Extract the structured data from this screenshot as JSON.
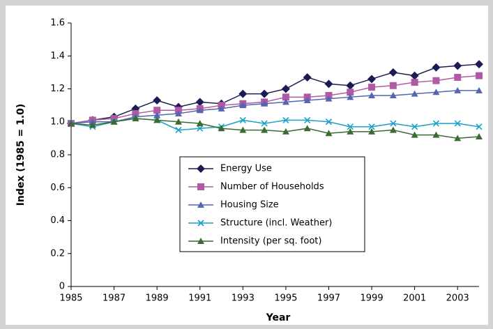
{
  "chart_data": {
    "type": "line",
    "x_label": "Year",
    "y_label": "Index (1985 = 1.0)",
    "x": [
      1985,
      1986,
      1987,
      1988,
      1989,
      1990,
      1991,
      1992,
      1993,
      1994,
      1995,
      1996,
      1997,
      1998,
      1999,
      2000,
      2001,
      2002,
      2003,
      2004
    ],
    "xlim": [
      1985,
      2004
    ],
    "xticks": [
      1985,
      1987,
      1989,
      1991,
      1993,
      1995,
      1997,
      1999,
      2001,
      2003
    ],
    "ylim": [
      0,
      1.6
    ],
    "yticks": [
      0,
      0.2,
      0.4,
      0.6,
      0.8,
      {
        "value": 1,
        "label": "1.0"
      },
      {
        "value": 1.2,
        "label": "1.2"
      },
      {
        "value": 1.4,
        "label": "1.4"
      },
      {
        "value": 1.6,
        "label": "1.6"
      }
    ],
    "grid": false,
    "legend": "center",
    "series": [
      {
        "name": "Energy Use",
        "color": "#1c1c54",
        "marker": "diamond",
        "values": [
          0.99,
          1.01,
          1.03,
          1.08,
          1.13,
          1.09,
          1.12,
          1.11,
          1.17,
          1.17,
          1.2,
          1.27,
          1.23,
          1.22,
          1.26,
          1.3,
          1.28,
          1.33,
          1.34,
          1.35
        ]
      },
      {
        "name": "Number of Households",
        "color": "#b05aa4",
        "marker": "square",
        "values": [
          0.99,
          1.01,
          1.02,
          1.05,
          1.07,
          1.07,
          1.08,
          1.1,
          1.11,
          1.12,
          1.15,
          1.15,
          1.16,
          1.18,
          1.21,
          1.22,
          1.24,
          1.25,
          1.27,
          1.28
        ]
      },
      {
        "name": "Housing Size",
        "color": "#5466b0",
        "marker": "triangle",
        "values": [
          0.99,
          1.0,
          1.0,
          1.03,
          1.04,
          1.05,
          1.07,
          1.08,
          1.1,
          1.11,
          1.12,
          1.13,
          1.14,
          1.15,
          1.16,
          1.16,
          1.17,
          1.18,
          1.19,
          1.19
        ]
      },
      {
        "name": "Structure (incl. Weather)",
        "color": "#1aa0c8",
        "marker": "x",
        "values": [
          0.99,
          0.97,
          1.0,
          1.02,
          1.01,
          0.95,
          0.96,
          0.97,
          1.01,
          0.99,
          1.01,
          1.01,
          1.0,
          0.97,
          0.97,
          0.99,
          0.97,
          0.99,
          0.99,
          0.97
        ]
      },
      {
        "name": "Intensity (per sq. foot)",
        "color": "#3b6a33",
        "marker": "triangle",
        "values": [
          0.99,
          0.98,
          1.0,
          1.02,
          1.01,
          1.0,
          0.99,
          0.96,
          0.95,
          0.95,
          0.94,
          0.96,
          0.93,
          0.94,
          0.94,
          0.95,
          0.92,
          0.92,
          0.9,
          0.91
        ]
      }
    ]
  }
}
